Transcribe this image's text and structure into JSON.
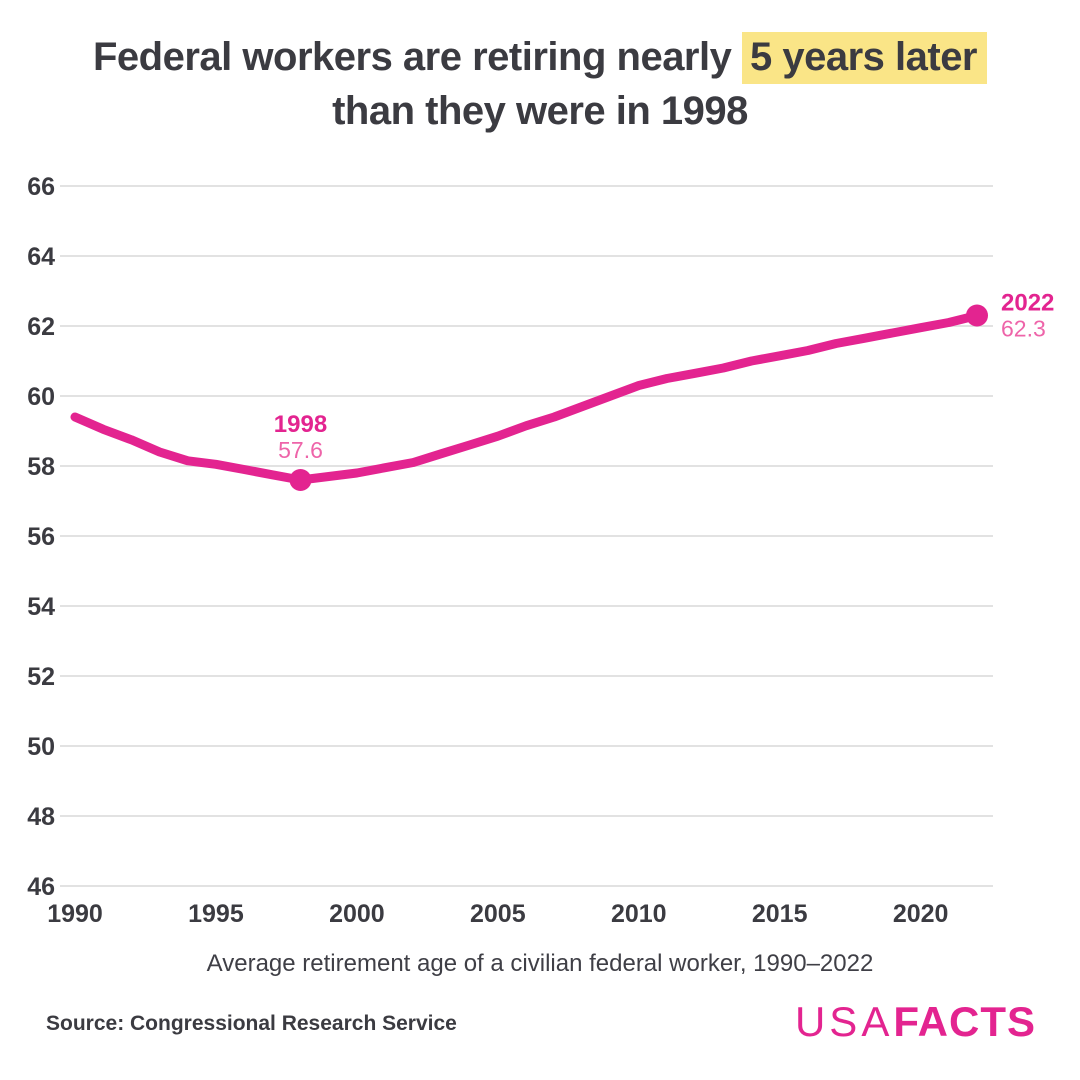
{
  "title": {
    "line1_pre": "Federal workers are retiring nearly ",
    "line1_highlight": "5 years later",
    "line2": "than they were in 1998"
  },
  "footer": {
    "source": "Source: Congressional Research Service",
    "logo_prefix": "USA",
    "logo_suffix": "FACTS"
  },
  "colors": {
    "accent_pink": "#e32490",
    "light_pink": "#ee64a9",
    "highlight_yellow": "#fae587",
    "text_dark": "#3b3b41",
    "gridline": "#e2e2e2"
  },
  "chart_data": {
    "type": "line",
    "title": "Federal workers are retiring nearly 5 years later than they were in 1998",
    "caption": "Average retirement age of a civilian federal worker, 1990–2022",
    "series_name": "Average retirement age of a civilian federal worker",
    "x": [
      1990,
      1991,
      1992,
      1993,
      1994,
      1995,
      1996,
      1997,
      1998,
      1999,
      2000,
      2001,
      2002,
      2003,
      2004,
      2005,
      2006,
      2007,
      2008,
      2009,
      2010,
      2011,
      2012,
      2013,
      2014,
      2015,
      2016,
      2017,
      2018,
      2019,
      2020,
      2021,
      2022
    ],
    "values": [
      59.4,
      59.05,
      58.75,
      58.4,
      58.15,
      58.05,
      57.9,
      57.75,
      57.6,
      57.7,
      57.8,
      57.95,
      58.1,
      58.35,
      58.6,
      58.85,
      59.15,
      59.4,
      59.7,
      60.0,
      60.3,
      60.5,
      60.65,
      60.8,
      61.0,
      61.15,
      61.3,
      61.5,
      61.65,
      61.8,
      61.95,
      62.1,
      62.3
    ],
    "ylim": [
      46,
      66
    ],
    "yticks": [
      46,
      48,
      50,
      52,
      54,
      56,
      58,
      60,
      62,
      64,
      66
    ],
    "xticks": [
      1990,
      1995,
      2000,
      2005,
      2010,
      2015,
      2020
    ],
    "grid": "horizontal",
    "legend": "none",
    "line_color": "#e32490",
    "annotations": [
      {
        "label": "1998",
        "value_label": "57.6",
        "year": 1998,
        "value": 57.6,
        "position": "above"
      },
      {
        "label": "2022",
        "value_label": "62.3",
        "year": 2022,
        "value": 62.3,
        "position": "right"
      }
    ]
  }
}
